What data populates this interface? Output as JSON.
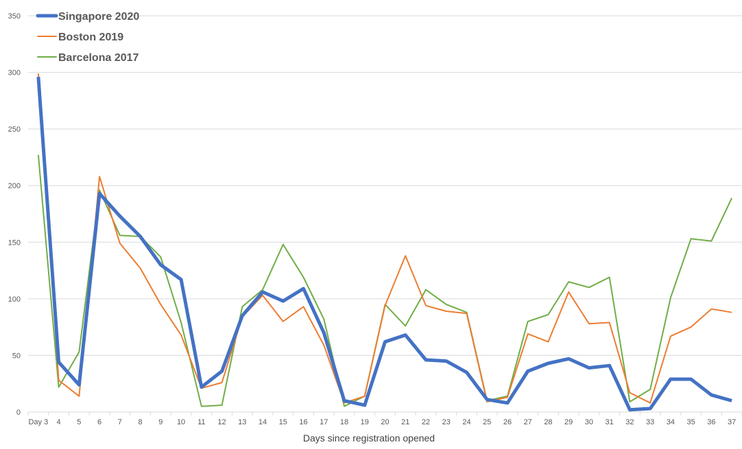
{
  "chart_data": {
    "type": "line",
    "title": "",
    "xlabel": "Days since registration opened",
    "ylabel": "",
    "ylim": [
      0,
      350
    ],
    "yticks": [
      0,
      50,
      100,
      150,
      200,
      250,
      300,
      350
    ],
    "grid": true,
    "legend_position": "top-left",
    "categories": [
      "Day 3",
      "4",
      "5",
      "6",
      "7",
      "8",
      "9",
      "10",
      "11",
      "12",
      "13",
      "14",
      "15",
      "16",
      "17",
      "18",
      "19",
      "20",
      "21",
      "22",
      "23",
      "24",
      "25",
      "26",
      "27",
      "28",
      "29",
      "30",
      "31",
      "32",
      "33",
      "34",
      "35",
      "36",
      "37"
    ],
    "series": [
      {
        "name": "Singapore 2020",
        "color": "#4472C4",
        "width": 5,
        "values": [
          296,
          44,
          24,
          193,
          173,
          155,
          130,
          117,
          22,
          36,
          85,
          106,
          98,
          109,
          70,
          10,
          6,
          62,
          68,
          46,
          45,
          35,
          11,
          8,
          36,
          43,
          47,
          39,
          41,
          2,
          3,
          29,
          29,
          15,
          10
        ]
      },
      {
        "name": "Boston 2019",
        "color": "#ED7D31",
        "width": 2,
        "values": [
          299,
          28,
          14,
          208,
          149,
          127,
          95,
          68,
          21,
          26,
          84,
          103,
          80,
          93,
          59,
          8,
          14,
          94,
          138,
          94,
          89,
          87,
          9,
          13,
          69,
          62,
          106,
          78,
          79,
          17,
          8,
          67,
          75,
          91,
          88
        ]
      },
      {
        "name": "Barcelona 2017",
        "color": "#70AD47",
        "width": 2,
        "values": [
          227,
          22,
          53,
          196,
          156,
          155,
          137,
          79,
          5,
          6,
          93,
          108,
          148,
          119,
          82,
          5,
          14,
          95,
          76,
          108,
          95,
          88,
          10,
          14,
          80,
          86,
          115,
          110,
          119,
          9,
          20,
          101,
          153,
          151,
          189
        ]
      }
    ]
  }
}
